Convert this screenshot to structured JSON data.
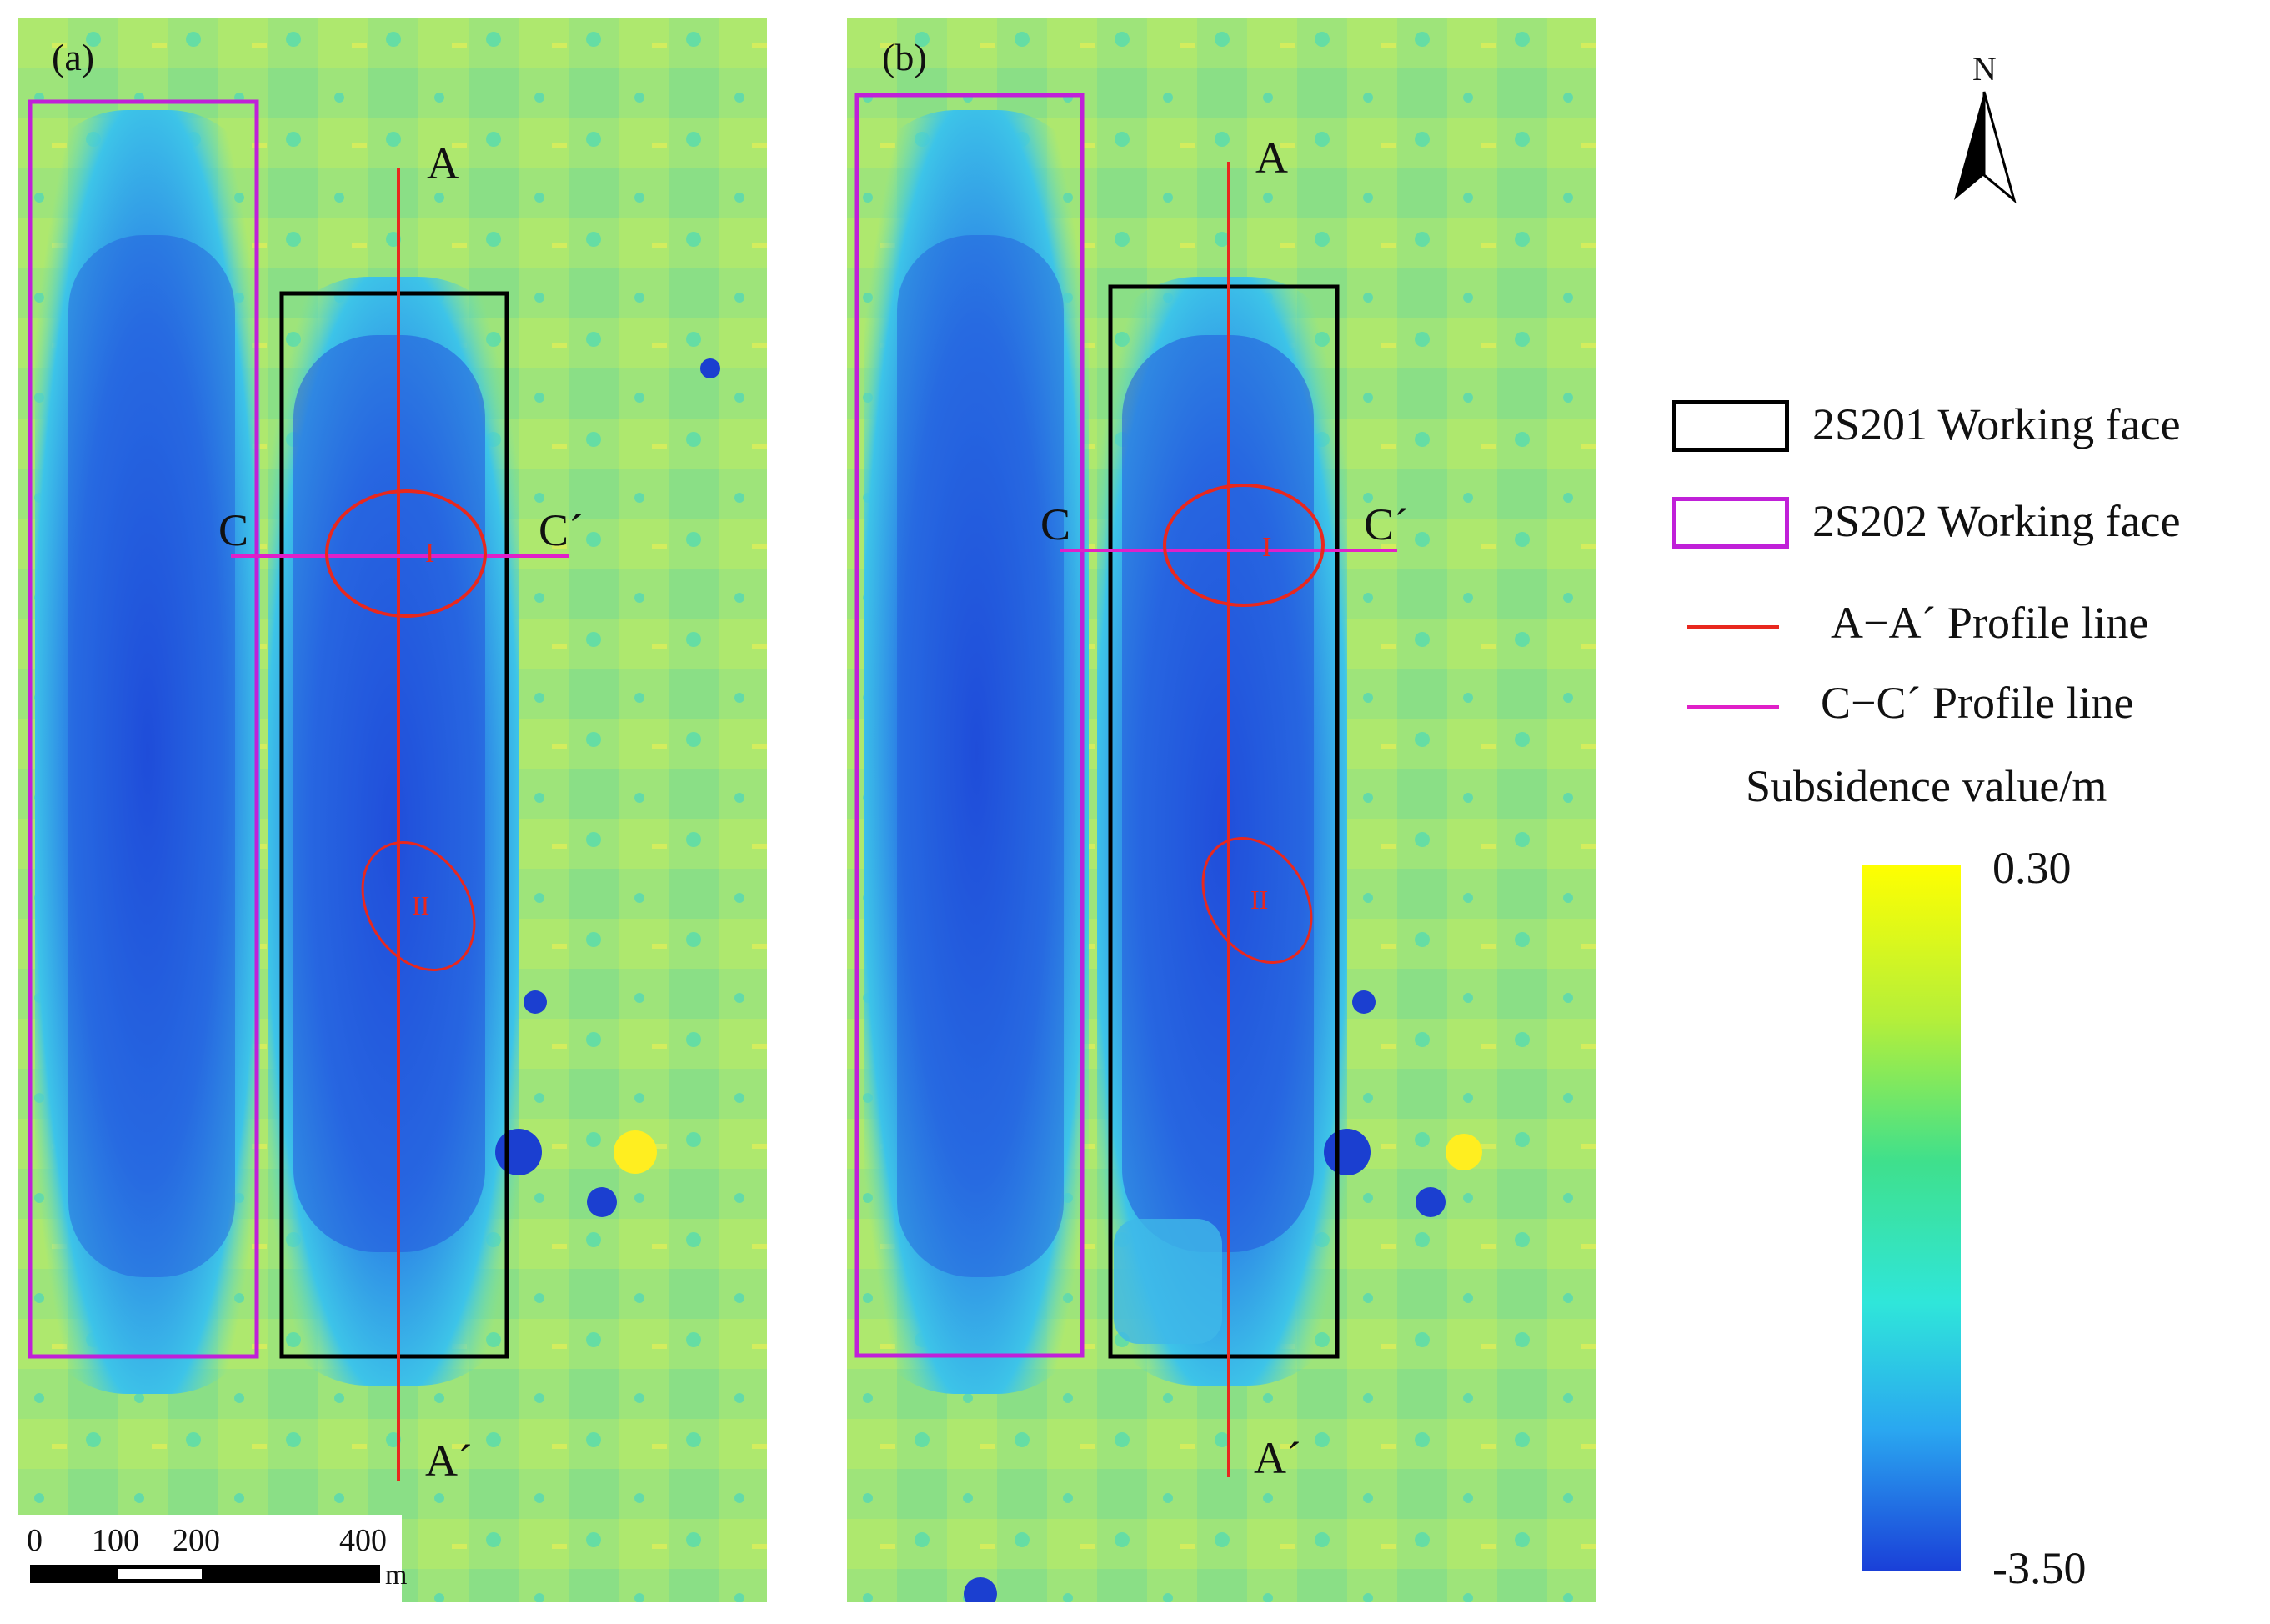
{
  "panels": [
    {
      "label": "(a)",
      "profile_a_start": "A",
      "profile_a_end": "A´",
      "profile_c_start": "C",
      "profile_c_end": "C´",
      "zone_1": "I",
      "zone_2": "II"
    },
    {
      "label": "(b)",
      "profile_a_start": "A",
      "profile_a_end": "A´",
      "profile_c_start": "C",
      "profile_c_end": "C´",
      "zone_1": "I",
      "zone_2": "II"
    }
  ],
  "scale_bar": {
    "ticks": [
      "0",
      "100",
      "200",
      "400"
    ],
    "unit": "m"
  },
  "north_arrow": {
    "label": "N"
  },
  "legend": {
    "items": [
      {
        "label": "2S201 Working face",
        "color": "#000000"
      },
      {
        "label": "2S202 Working face",
        "color": "#c020d8"
      },
      {
        "label": "A−A´ Profile line",
        "color": "#e8281e"
      },
      {
        "label": "C−C´  Profile line",
        "color": "#e020c8"
      }
    ],
    "colorbar_title": "Subsidence value/m",
    "colorbar_max": "0.30",
    "colorbar_min": "-3.50"
  },
  "colors": {
    "background_green": "#8fe27a",
    "subsidence_blue": "#2f6fe0",
    "deep_blue": "#1c3fd0",
    "frame_2S201": "#000000",
    "frame_2S202": "#c020d8",
    "profile_aa": "#e8281e",
    "profile_cc": "#e020c8"
  }
}
